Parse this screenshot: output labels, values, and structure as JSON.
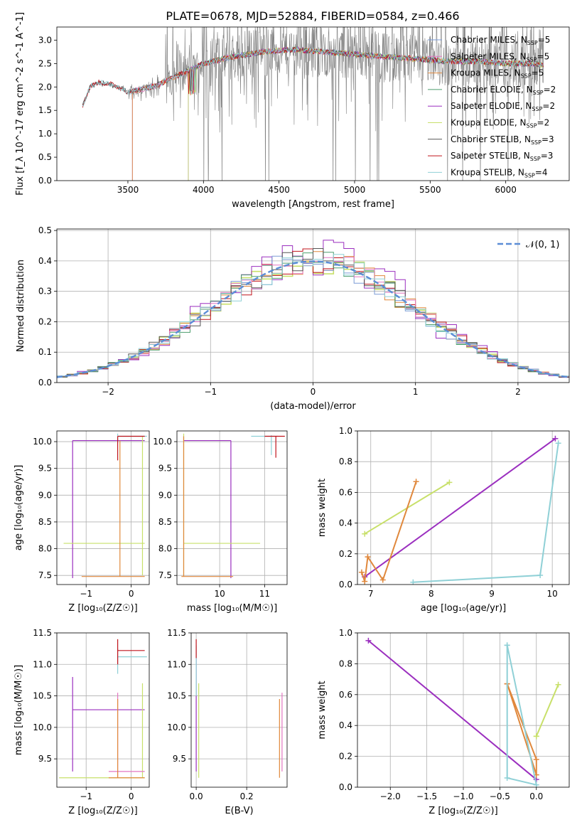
{
  "figure_title": "PLATE=0678, MJD=52884, FIBERID=0584, z=0.466",
  "colors": {
    "chabrier_miles": "#7b9bd6",
    "salpeter_miles": "#e377c2",
    "kroupa_miles": "#e0883c",
    "chabrier_elodie": "#4e9e6e",
    "salpeter_elodie": "#9b2fbf",
    "kroupa_elodie": "#c8e06a",
    "chabrier_stelib": "#555555",
    "salpeter_stelib": "#c0141c",
    "kroupa_stelib": "#8fd0d6",
    "data": "#808080",
    "normal": "#5b8dd6"
  },
  "chart_data": [
    {
      "id": "spectrum",
      "type": "line",
      "xlabel": "wavelength [Angstrom, rest frame]",
      "ylabel": "Flux [f_λ 10^-17 erg cm^-2 s^-1 A^-1]",
      "xlim": [
        3030,
        6420
      ],
      "ylim": [
        0,
        3.28
      ],
      "xticks": [
        3500,
        4000,
        4500,
        5000,
        5500,
        6000
      ],
      "yticks": [
        0.0,
        0.5,
        1.0,
        1.5,
        2.0,
        2.5,
        3.0
      ],
      "grid": false,
      "legend_position": "top-right",
      "legend": [
        {
          "label": "Chabrier MILES, N",
          "sub": "SSP",
          "suffix": "=5",
          "key": "chabrier_miles"
        },
        {
          "label": "Salpeter MILES, N",
          "sub": "SSP",
          "suffix": "=5",
          "key": "salpeter_miles"
        },
        {
          "label": "Kroupa MILES, N",
          "sub": "SSP",
          "suffix": "=5",
          "key": "kroupa_miles"
        },
        {
          "label": "Chabrier ELODIE, N",
          "sub": "SSP",
          "suffix": "=2",
          "key": "chabrier_elodie"
        },
        {
          "label": "Salpeter ELODIE, N",
          "sub": "SSP",
          "suffix": "=2",
          "key": "salpeter_elodie"
        },
        {
          "label": "Kroupa ELODIE, N",
          "sub": "SSP",
          "suffix": "=2",
          "key": "kroupa_elodie"
        },
        {
          "label": "Chabrier STELIB, N",
          "sub": "SSP",
          "suffix": "=3",
          "key": "chabrier_stelib"
        },
        {
          "label": "Salpeter STELIB, N",
          "sub": "SSP",
          "suffix": "=3",
          "key": "salpeter_stelib"
        },
        {
          "label": "Kroupa STELIB, N",
          "sub": "SSP",
          "suffix": "=4",
          "key": "kroupa_stelib"
        }
      ],
      "continuum": {
        "x": [
          3200,
          3250,
          3300,
          3400,
          3500,
          3600,
          3700,
          3800,
          3900,
          4000,
          4200,
          4400,
          4600,
          4800,
          5000,
          5200,
          5400,
          5600,
          5800,
          6000,
          6200,
          6250
        ],
        "y": [
          1.6,
          2.0,
          2.1,
          2.05,
          1.9,
          1.95,
          2.05,
          2.2,
          2.35,
          2.5,
          2.65,
          2.75,
          2.8,
          2.75,
          2.7,
          2.65,
          2.6,
          2.55,
          2.55,
          2.5,
          2.5,
          2.45
        ]
      }
    },
    {
      "id": "residuals",
      "type": "line",
      "xlabel": "(data-model)/error",
      "ylabel": "Normed distribution",
      "xlim": [
        -2.5,
        2.5
      ],
      "ylim": [
        0,
        0.505
      ],
      "xticks": [
        -2,
        -1,
        0,
        1,
        2
      ],
      "yticks": [
        0.0,
        0.1,
        0.2,
        0.3,
        0.4,
        0.5
      ],
      "grid": true,
      "legend_position": "top-right",
      "legend": [
        {
          "label": "𝒩(0, 1)",
          "key": "normal"
        }
      ],
      "bin_width": 0.1,
      "bin_start": -2.5
    },
    {
      "id": "age_vs_Z",
      "type": "scatter",
      "xlabel": "Z [log₁₀(Z/Z☉)]",
      "ylabel": "age  [log₁₀(age/yr)]",
      "xlim": [
        -1.65,
        0.4
      ],
      "ylim": [
        7.33,
        10.2
      ],
      "xticks": [
        -1,
        0
      ],
      "yticks": [
        7.5,
        8.0,
        8.5,
        9.0,
        9.5,
        10.0
      ],
      "grid": true
    },
    {
      "id": "age_vs_mass",
      "type": "scatter",
      "xlabel": "mass [log₁₀(M/M☉)]",
      "ylabel": "",
      "xlim": [
        9.05,
        11.5
      ],
      "ylim": [
        7.33,
        10.2
      ],
      "xticks": [
        10,
        11
      ],
      "yticks": [
        7.5,
        8.0,
        8.5,
        9.0,
        9.5,
        10.0
      ],
      "grid": true
    },
    {
      "id": "weight_vs_age",
      "type": "line",
      "xlabel": "age  [log₁₀(age/yr)]",
      "ylabel": "mass weight",
      "xlim": [
        6.78,
        10.28
      ],
      "ylim": [
        0,
        1.0
      ],
      "xticks": [
        7,
        8,
        9,
        10
      ],
      "yticks": [
        0.0,
        0.2,
        0.4,
        0.6,
        0.8,
        1.0
      ],
      "grid": true,
      "series": [
        {
          "key": "kroupa_elodie",
          "x": [
            6.9,
            8.3
          ],
          "y": [
            0.33,
            0.665
          ]
        },
        {
          "key": "salpeter_elodie",
          "x": [
            6.9,
            10.05
          ],
          "y": [
            0.05,
            0.95
          ]
        },
        {
          "key": "kroupa_miles",
          "x": [
            6.85,
            6.9,
            6.95,
            7.2,
            7.75
          ],
          "y": [
            0.08,
            0.02,
            0.18,
            0.03,
            0.67
          ]
        },
        {
          "key": "kroupa_stelib",
          "x": [
            7.7,
            9.8,
            10.1
          ],
          "y": [
            0.015,
            0.06,
            0.92
          ]
        }
      ]
    },
    {
      "id": "mass_vs_Z",
      "type": "scatter",
      "xlabel": "Z [log₁₀(Z/Z☉)]",
      "ylabel": "mass [log₁₀(M/M☉)]",
      "xlim": [
        -1.65,
        0.4
      ],
      "ylim": [
        9.05,
        11.5
      ],
      "xticks": [
        -1,
        0
      ],
      "yticks": [
        9.5,
        10.0,
        10.5,
        11.0,
        11.5
      ],
      "grid": true
    },
    {
      "id": "mass_vs_ebv",
      "type": "scatter",
      "xlabel": "E(B-V)",
      "ylabel": "",
      "xlim": [
        -0.02,
        0.36
      ],
      "ylim": [
        9.05,
        11.5
      ],
      "xticks": [
        0.0,
        0.2
      ],
      "yticks": [
        9.5,
        10.0,
        10.5,
        11.0,
        11.5
      ],
      "grid": true
    },
    {
      "id": "weight_vs_Z",
      "type": "line",
      "xlabel": "Z [log₁₀(Z/Z☉)]",
      "ylabel": "mass weight",
      "xlim": [
        -2.45,
        0.45
      ],
      "ylim": [
        0,
        1.0
      ],
      "xticks": [
        -2.0,
        -1.5,
        -1.0,
        -0.5,
        0.0
      ],
      "yticks": [
        0.0,
        0.2,
        0.4,
        0.6,
        0.8,
        1.0
      ],
      "grid": true,
      "series": [
        {
          "key": "salpeter_elodie",
          "x": [
            -2.3,
            0.0
          ],
          "y": [
            0.95,
            0.05
          ]
        },
        {
          "key": "kroupa_elodie",
          "x": [
            0.0,
            0.3,
            0.0
          ],
          "y": [
            0.33,
            0.665,
            0.33
          ]
        },
        {
          "key": "kroupa_miles",
          "x": [
            -0.4,
            0.0,
            0.0,
            -0.4
          ],
          "y": [
            0.67,
            0.08,
            0.18,
            0.67
          ]
        },
        {
          "key": "kroupa_stelib",
          "x": [
            -0.4,
            -0.4,
            0.0,
            -0.4
          ],
          "y": [
            0.92,
            0.06,
            0.015,
            0.92
          ]
        }
      ]
    }
  ]
}
